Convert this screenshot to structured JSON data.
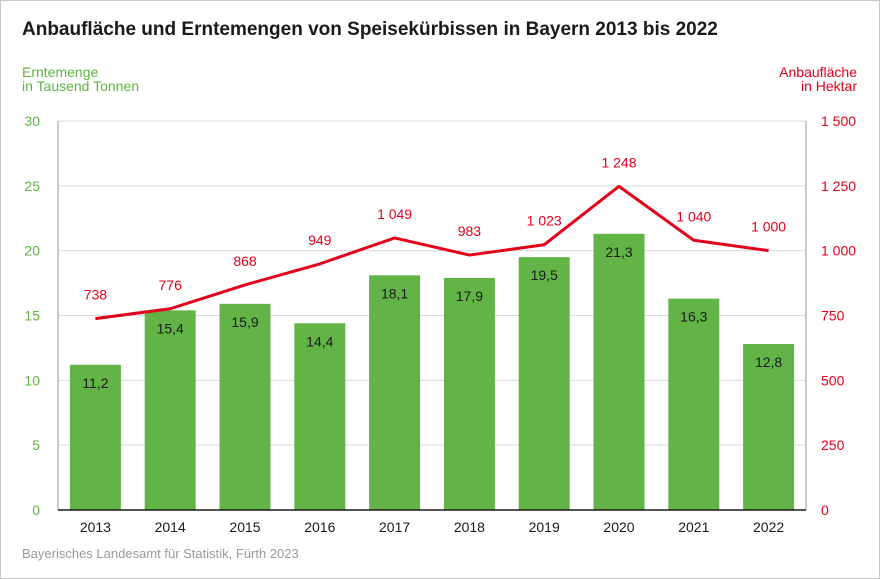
{
  "title": "Anbaufläche und Erntemengen von Speisekürbissen in Bayern 2013 bis 2022",
  "left_axis_label": {
    "line1": "Erntemenge",
    "line2": "in Tausend Tonnen"
  },
  "right_axis_label": {
    "line1": "Anbaufläche",
    "line2": "in Hektar"
  },
  "source": "Bayerisches Landesamt für Statistik, Fürth 2023",
  "colors": {
    "bar": "#62b446",
    "line": "#e2001a",
    "axis_left": "#5fb442",
    "grid": "#d9d9d9"
  },
  "chart_data": {
    "type": "bar+line",
    "categories": [
      "2013",
      "2014",
      "2015",
      "2016",
      "2017",
      "2018",
      "2019",
      "2020",
      "2021",
      "2022"
    ],
    "series": [
      {
        "name": "Erntemenge in Tausend Tonnen",
        "type": "bar",
        "axis": "left",
        "values": [
          11.2,
          15.4,
          15.9,
          14.4,
          18.1,
          17.9,
          19.5,
          21.3,
          16.3,
          12.8
        ],
        "labels": [
          "11,2",
          "15,4",
          "15,9",
          "14,4",
          "18,1",
          "17,9",
          "19,5",
          "21,3",
          "16,3",
          "12,8"
        ]
      },
      {
        "name": "Anbaufläche in Hektar",
        "type": "line",
        "axis": "right",
        "values": [
          738,
          776,
          868,
          949,
          1049,
          983,
          1023,
          1248,
          1040,
          1000
        ],
        "labels": [
          "738",
          "776",
          "868",
          "949",
          "1 049",
          "983",
          "1 023",
          "1 248",
          "1 040",
          "1 000"
        ]
      }
    ],
    "left_axis": {
      "min": 0,
      "max": 30,
      "ticks": [
        "0",
        "5",
        "10",
        "15",
        "20",
        "25",
        "30"
      ]
    },
    "right_axis": {
      "min": 0,
      "max": 1500,
      "ticks": [
        "0",
        "250",
        "500",
        "750",
        "1 000",
        "1 250",
        "1 500"
      ]
    },
    "grid": true
  }
}
